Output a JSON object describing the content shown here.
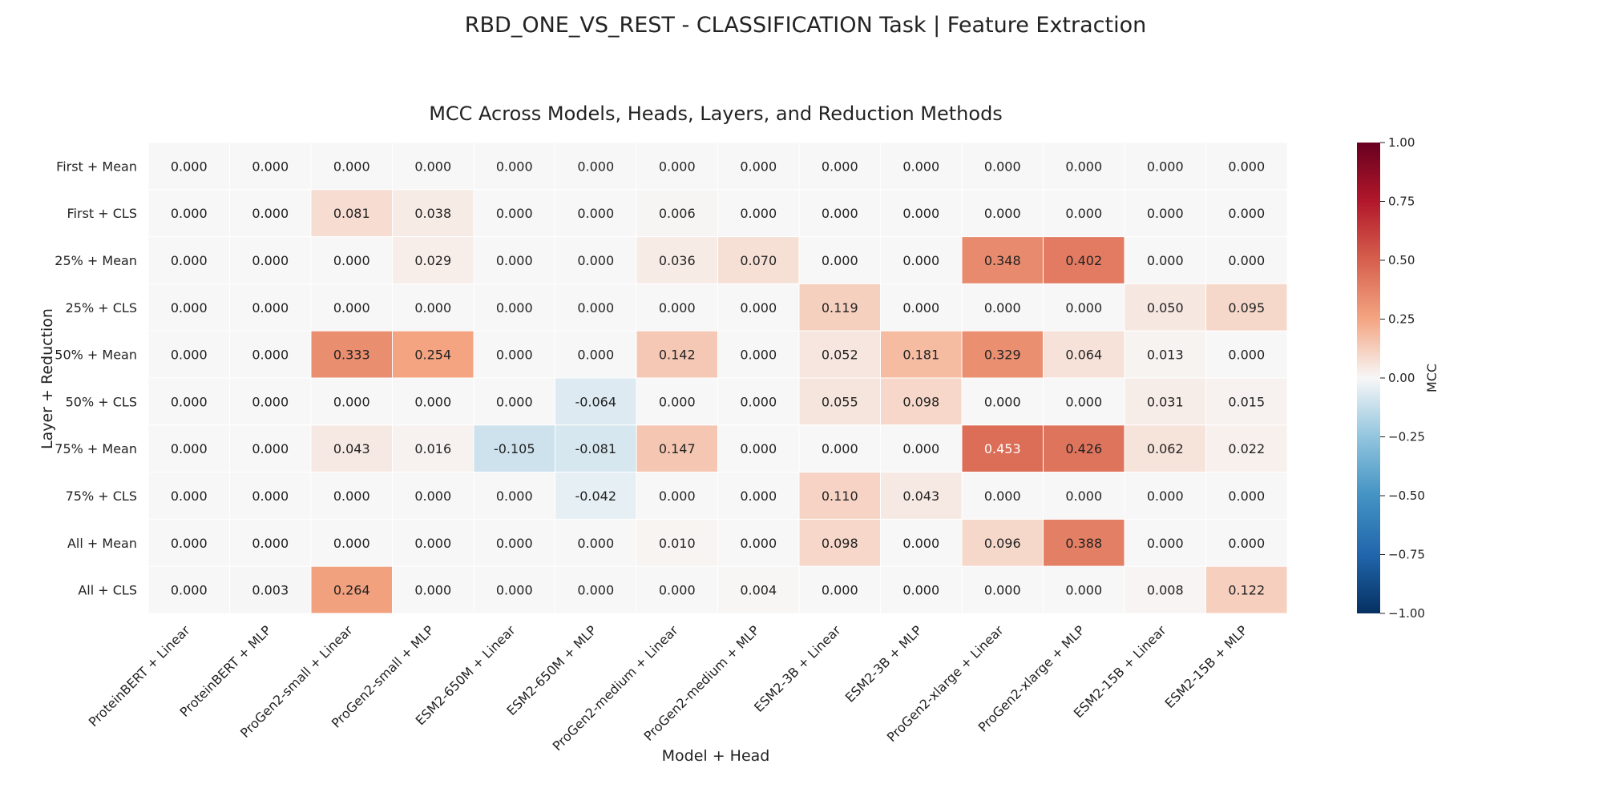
{
  "figure": {
    "suptitle": "RBD_ONE_VS_REST - CLASSIFICATION Task | Feature Extraction"
  },
  "chart_data": {
    "type": "heatmap",
    "title": "MCC Across Models, Heads, Layers, and Reduction Methods",
    "xlabel": "Model + Head",
    "ylabel": "Layer + Reduction",
    "x_categories": [
      "ProteinBERT + Linear",
      "ProteinBERT + MLP",
      "ProGen2-small + Linear",
      "ProGen2-small + MLP",
      "ESM2-650M + Linear",
      "ESM2-650M + MLP",
      "ProGen2-medium + Linear",
      "ProGen2-medium + MLP",
      "ESM2-3B + Linear",
      "ESM2-3B + MLP",
      "ProGen2-xlarge + Linear",
      "ProGen2-xlarge + MLP",
      "ESM2-15B + Linear",
      "ESM2-15B + MLP"
    ],
    "y_categories": [
      "First + Mean",
      "First + CLS",
      "25% + Mean",
      "25% + CLS",
      "50% + Mean",
      "50% + CLS",
      "75% + Mean",
      "75% + CLS",
      "All + Mean",
      "All + CLS"
    ],
    "values": [
      [
        "0.000",
        "0.000",
        "0.000",
        "0.000",
        "0.000",
        "0.000",
        "0.000",
        "0.000",
        "0.000",
        "0.000",
        "0.000",
        "0.000",
        "0.000",
        "0.000"
      ],
      [
        "0.000",
        "0.000",
        "0.081",
        "0.038",
        "0.000",
        "0.000",
        "0.006",
        "0.000",
        "0.000",
        "0.000",
        "0.000",
        "0.000",
        "0.000",
        "0.000"
      ],
      [
        "0.000",
        "0.000",
        "0.000",
        "0.029",
        "0.000",
        "0.000",
        "0.036",
        "0.070",
        "0.000",
        "0.000",
        "0.348",
        "0.402",
        "0.000",
        "0.000"
      ],
      [
        "0.000",
        "0.000",
        "0.000",
        "0.000",
        "0.000",
        "0.000",
        "0.000",
        "0.000",
        "0.119",
        "0.000",
        "0.000",
        "0.000",
        "0.050",
        "0.095"
      ],
      [
        "0.000",
        "0.000",
        "0.333",
        "0.254",
        "0.000",
        "0.000",
        "0.142",
        "0.000",
        "0.052",
        "0.181",
        "0.329",
        "0.064",
        "0.013",
        "0.000"
      ],
      [
        "0.000",
        "0.000",
        "0.000",
        "0.000",
        "0.000",
        "-0.064",
        "0.000",
        "0.000",
        "0.055",
        "0.098",
        "0.000",
        "0.000",
        "0.031",
        "0.015"
      ],
      [
        "0.000",
        "0.000",
        "0.043",
        "0.016",
        "-0.105",
        "-0.081",
        "0.147",
        "0.000",
        "0.000",
        "0.000",
        "0.453",
        "0.426",
        "0.062",
        "0.022"
      ],
      [
        "0.000",
        "0.000",
        "0.000",
        "0.000",
        "0.000",
        "-0.042",
        "0.000",
        "0.000",
        "0.110",
        "0.043",
        "0.000",
        "0.000",
        "0.000",
        "0.000"
      ],
      [
        "0.000",
        "0.000",
        "0.000",
        "0.000",
        "0.000",
        "0.000",
        "0.010",
        "0.000",
        "0.098",
        "0.000",
        "0.096",
        "0.388",
        "0.000",
        "0.000"
      ],
      [
        "0.000",
        "0.003",
        "0.264",
        "0.000",
        "0.000",
        "0.000",
        "0.000",
        "0.004",
        "0.000",
        "0.000",
        "0.000",
        "0.000",
        "0.008",
        "0.122"
      ]
    ],
    "vmin": -1.0,
    "vmax": 1.0,
    "colormap": "RdBu_r",
    "colorbar": {
      "label": "MCC",
      "ticks": [
        "1.00",
        "0.75",
        "0.50",
        "0.25",
        "0.00",
        "−0.25",
        "−0.50",
        "−0.75",
        "−1.00"
      ]
    },
    "grid": false,
    "legend": "colorbar-right"
  }
}
